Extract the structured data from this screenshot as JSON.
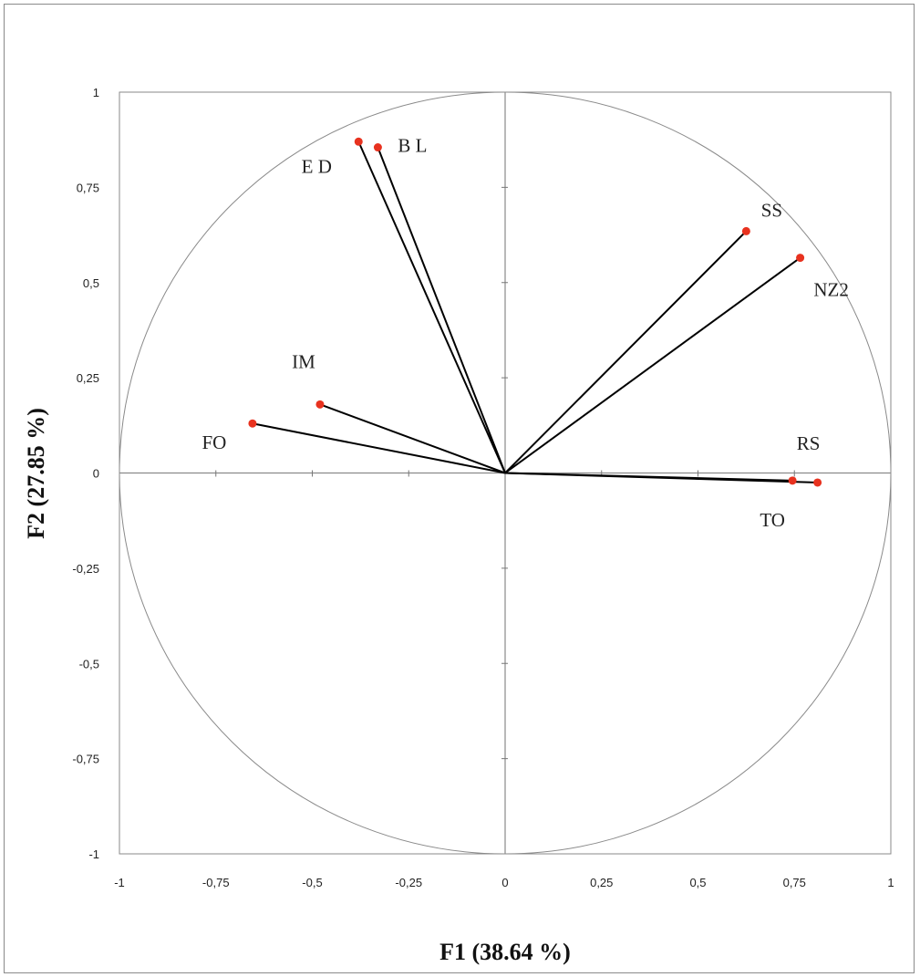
{
  "chart_data": {
    "type": "scatter",
    "subtype": "correlation-circle",
    "title": "",
    "xlabel": "F1 (38.64 %)",
    "ylabel": "F2 (27.85 %)",
    "xlim": [
      -1,
      1
    ],
    "ylim": [
      -1,
      1
    ],
    "xticks": [
      -1,
      -0.75,
      -0.5,
      -0.25,
      0,
      0.25,
      0.5,
      0.75,
      1
    ],
    "yticks": [
      -1,
      -0.75,
      -0.5,
      -0.25,
      0,
      0.25,
      0.5,
      0.75,
      1
    ],
    "xtick_labels": [
      "-1",
      "-0,75",
      "-0,5",
      "-0,25",
      "0",
      "0,25",
      "0,5",
      "0,75",
      "1"
    ],
    "ytick_labels": [
      "-1",
      "-0,75",
      "-0,5",
      "-0,25",
      "0",
      "0,25",
      "0,5",
      "0,75",
      "1"
    ],
    "grid": false,
    "unit_circle": true,
    "point_color": "#e8321f",
    "vector_color": "#000000",
    "variables": [
      {
        "label": "E D",
        "x": -0.38,
        "y": 0.87
      },
      {
        "label": "B L",
        "x": -0.33,
        "y": 0.855
      },
      {
        "label": "SS",
        "x": 0.625,
        "y": 0.635
      },
      {
        "label": "NZ2",
        "x": 0.765,
        "y": 0.565
      },
      {
        "label": "IM",
        "x": -0.48,
        "y": 0.18
      },
      {
        "label": "FO",
        "x": -0.655,
        "y": 0.13
      },
      {
        "label": "TO",
        "x": 0.745,
        "y": -0.02
      },
      {
        "label": "RS",
        "x": 0.81,
        "y": -0.025
      }
    ]
  }
}
